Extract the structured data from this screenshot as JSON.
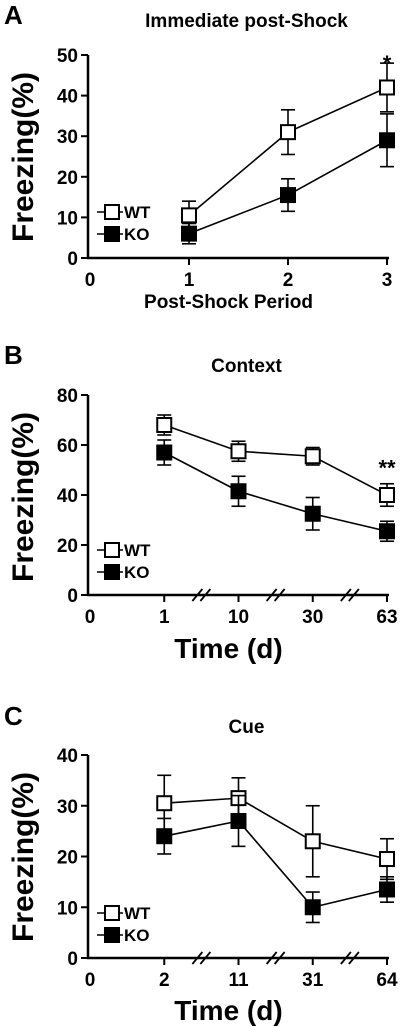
{
  "chart_data": [
    {
      "type": "line",
      "panel_label": "A",
      "title": "Immediate post-Shock",
      "xlabel": "Post-Shock Period",
      "ylabel": "Freezing(%)",
      "xlim": [
        0,
        3
      ],
      "ylim": [
        0,
        50
      ],
      "xticks": [
        "0",
        "1",
        "2",
        "3"
      ],
      "yticks": [
        "0",
        "10",
        "20",
        "30",
        "40",
        "50"
      ],
      "x": [
        1,
        2,
        3
      ],
      "axis_breaks": false,
      "legend": "bottom-left",
      "series": [
        {
          "name": "WT",
          "marker": "open-square",
          "values": [
            10.5,
            31,
            42
          ],
          "err": [
            3.5,
            5.5,
            6
          ]
        },
        {
          "name": "KO",
          "marker": "filled-square",
          "values": [
            6,
            15.5,
            29
          ],
          "err": [
            2.5,
            4,
            6.5
          ]
        }
      ],
      "annotations": [
        {
          "text": "*",
          "x": 3,
          "y": 48
        }
      ]
    },
    {
      "type": "line",
      "panel_label": "B",
      "title": "Context",
      "xlabel": "Time (d)",
      "ylabel": "Freezing(%)",
      "xlim": [
        0,
        4
      ],
      "ylim": [
        0,
        80
      ],
      "xticks": [
        "0",
        "1",
        "10",
        "30",
        "63"
      ],
      "yticks": [
        "0",
        "20",
        "40",
        "60",
        "80"
      ],
      "x": [
        1,
        10,
        30,
        63
      ],
      "axis_breaks": true,
      "legend": "bottom-left",
      "series": [
        {
          "name": "WT",
          "marker": "open-square",
          "values": [
            68,
            57.5,
            55.5,
            40
          ],
          "err": [
            4,
            4,
            3.5,
            4.5
          ]
        },
        {
          "name": "KO",
          "marker": "filled-square",
          "values": [
            57,
            41.5,
            32.5,
            25.5
          ],
          "err": [
            5,
            6,
            6.5,
            4
          ]
        }
      ],
      "annotations": [
        {
          "text": "**",
          "x": 63,
          "y": 51
        }
      ]
    },
    {
      "type": "line",
      "panel_label": "C",
      "title": "Cue",
      "xlabel": "Time (d)",
      "ylabel": "Freezing(%)",
      "xlim": [
        0,
        4
      ],
      "ylim": [
        0,
        40
      ],
      "xticks": [
        "0",
        "2",
        "11",
        "31",
        "64"
      ],
      "yticks": [
        "0",
        "10",
        "20",
        "30",
        "40"
      ],
      "x": [
        2,
        11,
        31,
        64
      ],
      "axis_breaks": true,
      "legend": "bottom-left",
      "series": [
        {
          "name": "WT",
          "marker": "open-square",
          "values": [
            30.5,
            31.5,
            23,
            19.5
          ],
          "err": [
            5.5,
            4,
            7,
            4
          ]
        },
        {
          "name": "KO",
          "marker": "filled-square",
          "values": [
            24,
            27,
            10,
            13.5
          ],
          "err": [
            3.5,
            5,
            3,
            2.5
          ]
        }
      ],
      "annotations": []
    }
  ]
}
